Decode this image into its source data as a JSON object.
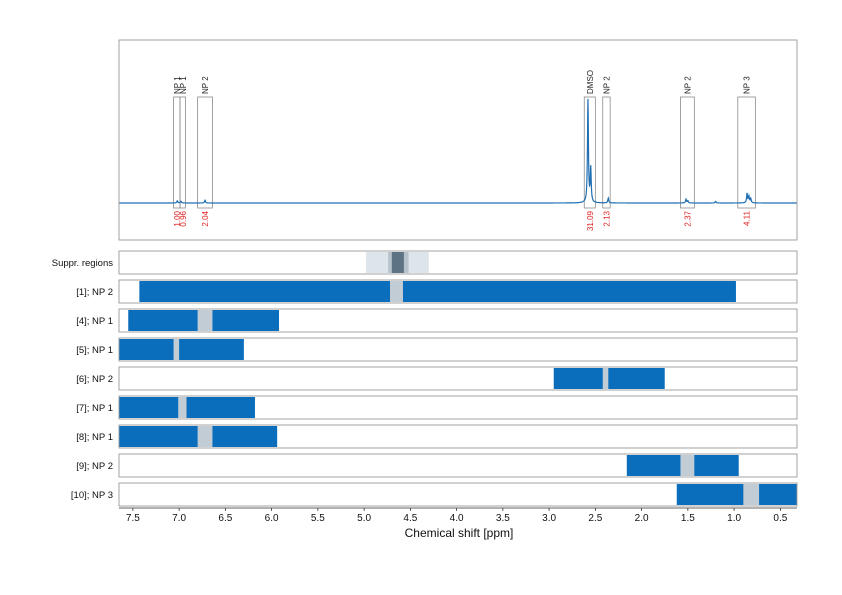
{
  "chart_data": {
    "type": "line",
    "xlabel": "Chemical shift [ppm]",
    "xlim": [
      7.65,
      0.32
    ],
    "x_ticks": [
      "7.5",
      "7.0",
      "6.5",
      "6.0",
      "5.5",
      "5.0",
      "4.5",
      "4.0",
      "3.5",
      "3.0",
      "2.5",
      "2.0",
      "1.5",
      "1.0",
      "0.5"
    ],
    "x_reversed": true,
    "grid": true,
    "colors": {
      "spectrum": "#1f6fb2",
      "bar": "#0a6ebd",
      "gap": "#c2ccd4",
      "suppr_outer": "#dde4ea",
      "suppr_mid": "#b7c2cc",
      "suppr_core": "#5e7383",
      "integral_text": "#e02020",
      "frame": "#999999"
    },
    "spectrum": {
      "baseline": 0,
      "ymax": 100,
      "peaks": [
        {
          "x": 7.02,
          "h": 2.0
        },
        {
          "x": 6.98,
          "h": 1.6
        },
        {
          "x": 6.72,
          "h": 2.6
        },
        {
          "x": 2.58,
          "h": 97
        },
        {
          "x": 2.55,
          "h": 32
        },
        {
          "x": 2.36,
          "h": 4.5
        },
        {
          "x": 1.52,
          "h": 3.5
        },
        {
          "x": 1.5,
          "h": 2.0
        },
        {
          "x": 1.2,
          "h": 1.5
        },
        {
          "x": 0.86,
          "h": 9
        },
        {
          "x": 0.84,
          "h": 6
        },
        {
          "x": 0.82,
          "h": 4
        }
      ],
      "regions": [
        {
          "label": "NP 1",
          "integral": "1.00",
          "from": 7.06,
          "to": 6.99
        },
        {
          "label": "NP 1",
          "integral": "0.96",
          "from": 6.99,
          "to": 6.93
        },
        {
          "label": "NP 2",
          "integral": "2.04",
          "from": 6.8,
          "to": 6.64
        },
        {
          "label": "DMSO",
          "integral": "31.09",
          "from": 2.62,
          "to": 2.5
        },
        {
          "label": "NP 2",
          "integral": "2.13",
          "from": 2.42,
          "to": 2.34
        },
        {
          "label": "NP 2",
          "integral": "2.37",
          "from": 1.58,
          "to": 1.43
        },
        {
          "label": "NP 3",
          "integral": "4.11",
          "from": 0.96,
          "to": 0.77
        }
      ]
    },
    "suppression": {
      "label": "Suppr. regions",
      "outer": [
        4.98,
        4.3
      ],
      "mid": [
        4.74,
        4.52
      ],
      "core": [
        4.7,
        4.57
      ]
    },
    "tracks": [
      {
        "label": "[1]; NP 2",
        "from": 7.43,
        "to": 0.98,
        "gap": [
          4.72,
          4.58
        ]
      },
      {
        "label": "[4]; NP 1",
        "from": 7.55,
        "to": 5.92,
        "gap": [
          6.8,
          6.64
        ]
      },
      {
        "label": "[5]; NP 1",
        "from": 7.65,
        "to": 6.3,
        "gap": [
          7.06,
          7.0
        ]
      },
      {
        "label": "[6]; NP 2",
        "from": 2.95,
        "to": 1.75,
        "gap": [
          2.42,
          2.36
        ]
      },
      {
        "label": "[7]; NP 1",
        "from": 7.65,
        "to": 6.18,
        "gap": [
          7.01,
          6.92
        ]
      },
      {
        "label": "[8]; NP 1",
        "from": 7.65,
        "to": 5.94,
        "gap": [
          6.8,
          6.64
        ]
      },
      {
        "label": "[9]; NP 2",
        "from": 2.16,
        "to": 0.95,
        "gap": [
          1.58,
          1.43
        ]
      },
      {
        "label": "[10]; NP 3",
        "from": 1.62,
        "to": 0.32,
        "gap": [
          0.9,
          0.73
        ]
      }
    ]
  }
}
